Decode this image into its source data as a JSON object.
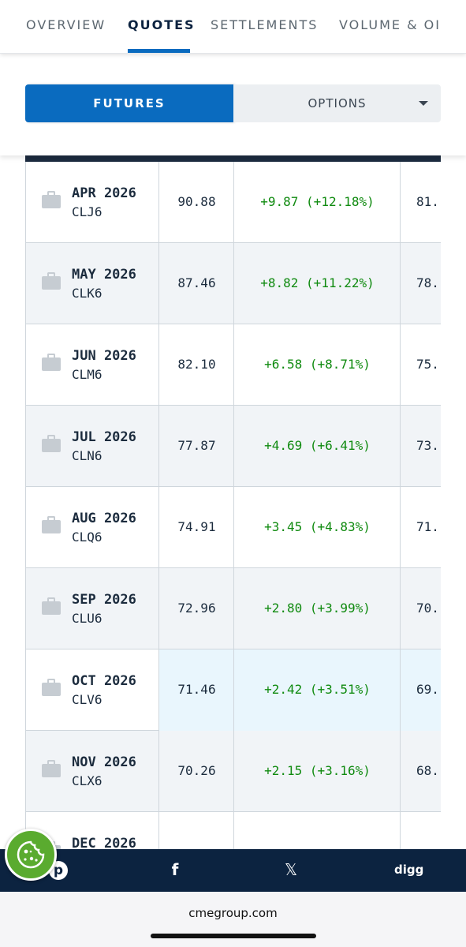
{
  "tabs": [
    {
      "label": "OVERVIEW",
      "active": false
    },
    {
      "label": "QUOTES",
      "active": true
    },
    {
      "label": "SETTLEMENTS",
      "active": false
    },
    {
      "label": "VOLUME & OI",
      "active": false
    }
  ],
  "segment": {
    "futures_label": "FUTURES",
    "options_label": "OPTIONS"
  },
  "rows": [
    {
      "month": "APR 2026",
      "code": "CLJ6",
      "last": "90.88",
      "change": "+9.87 (+12.18%)",
      "prior": "81."
    },
    {
      "month": "MAY 2026",
      "code": "CLK6",
      "last": "87.46",
      "change": "+8.82 (+11.22%)",
      "prior": "78."
    },
    {
      "month": "JUN 2026",
      "code": "CLM6",
      "last": "82.10",
      "change": "+6.58 (+8.71%)",
      "prior": "75."
    },
    {
      "month": "JUL 2026",
      "code": "CLN6",
      "last": "77.87",
      "change": "+4.69 (+6.41%)",
      "prior": "73."
    },
    {
      "month": "AUG 2026",
      "code": "CLQ6",
      "last": "74.91",
      "change": "+3.45 (+4.83%)",
      "prior": "71."
    },
    {
      "month": "SEP 2026",
      "code": "CLU6",
      "last": "72.96",
      "change": "+2.80 (+3.99%)",
      "prior": "70."
    },
    {
      "month": "OCT 2026",
      "code": "CLV6",
      "last": "71.46",
      "change": "+2.42 (+3.51%)",
      "prior": "69."
    },
    {
      "month": "NOV 2026",
      "code": "CLX6",
      "last": "70.26",
      "change": "+2.15 (+3.16%)",
      "prior": "68."
    },
    {
      "month": "DEC 2026",
      "code": "",
      "last": "",
      "change": "",
      "prior": ""
    }
  ],
  "share_bar": {
    "pinterest_glyph": "p",
    "facebook_glyph": "f",
    "x_glyph": "𝕏",
    "digg_label": "digg"
  },
  "footer": {
    "domain": "cmegroup.com"
  },
  "colors": {
    "accent": "#0a6bbf",
    "navy": "#0c2340",
    "positive": "#0f8a0f",
    "cookie": "#5aab2f"
  },
  "icons": {
    "row_icon": "briefcase-icon",
    "cookie": "cookie-icon"
  }
}
